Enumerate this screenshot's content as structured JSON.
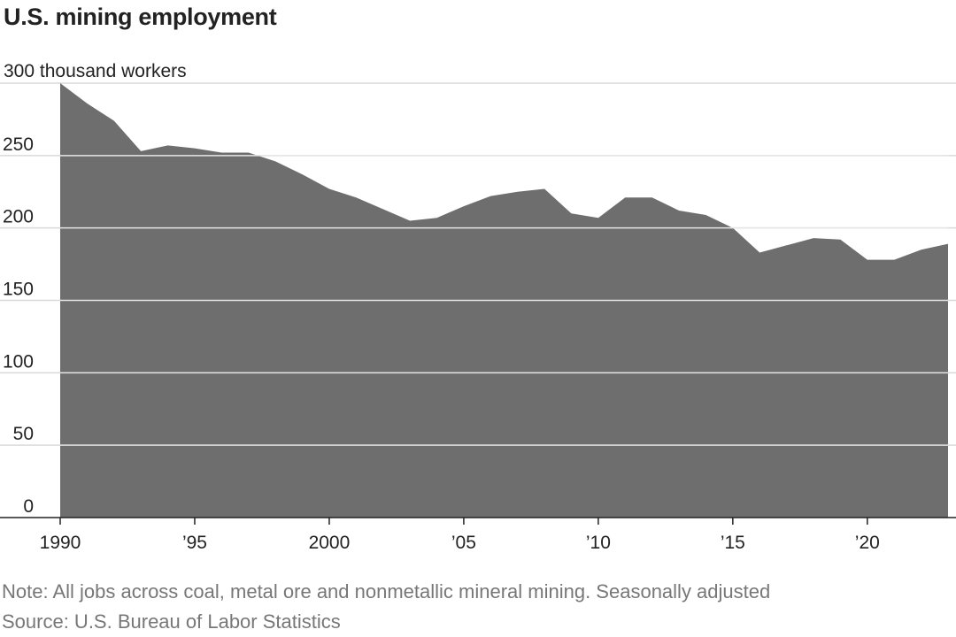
{
  "title": "U.S. mining employment",
  "note": "Note: All jobs across coal, metal ore and nonmetallic mineral mining. Seasonally adjusted",
  "source": "Source: U.S. Bureau of Labor Statistics",
  "chart_data": {
    "type": "area",
    "title": "U.S. mining employment",
    "ylabel": "300 thousand workers",
    "xlabel": "",
    "x": [
      1990,
      1991,
      1992,
      1993,
      1994,
      1995,
      1996,
      1997,
      1998,
      1999,
      2000,
      2001,
      2002,
      2003,
      2004,
      2005,
      2006,
      2007,
      2008,
      2009,
      2010,
      2011,
      2012,
      2013,
      2014,
      2015,
      2016,
      2017,
      2018,
      2019,
      2020,
      2021,
      2022,
      2023
    ],
    "series": [
      {
        "values": [
          300,
          286,
          274,
          253,
          257,
          255,
          252,
          252,
          246,
          237,
          227,
          221,
          213,
          205,
          207,
          215,
          222,
          225,
          227,
          210,
          207,
          221,
          221,
          212,
          209,
          200,
          183,
          188,
          193,
          192,
          178,
          178,
          185,
          189
        ]
      }
    ],
    "yticks": [
      0,
      50,
      100,
      150,
      200,
      250,
      300
    ],
    "ytick_labels": [
      "0",
      "50",
      "100",
      "150",
      "200",
      "250",
      ""
    ],
    "xticks": [
      1990,
      1995,
      2000,
      2005,
      2010,
      2015,
      2020
    ],
    "xtick_labels": [
      "1990",
      "’95",
      "2000",
      "’05",
      "’10",
      "’15",
      "’20"
    ],
    "ylim": [
      0,
      300
    ],
    "xlim": [
      1990,
      2023
    ],
    "grid": true,
    "legend": "none",
    "colors": {
      "area": "#6e6e6e",
      "grid": "#d9d9d9",
      "axis": "#222222"
    }
  }
}
